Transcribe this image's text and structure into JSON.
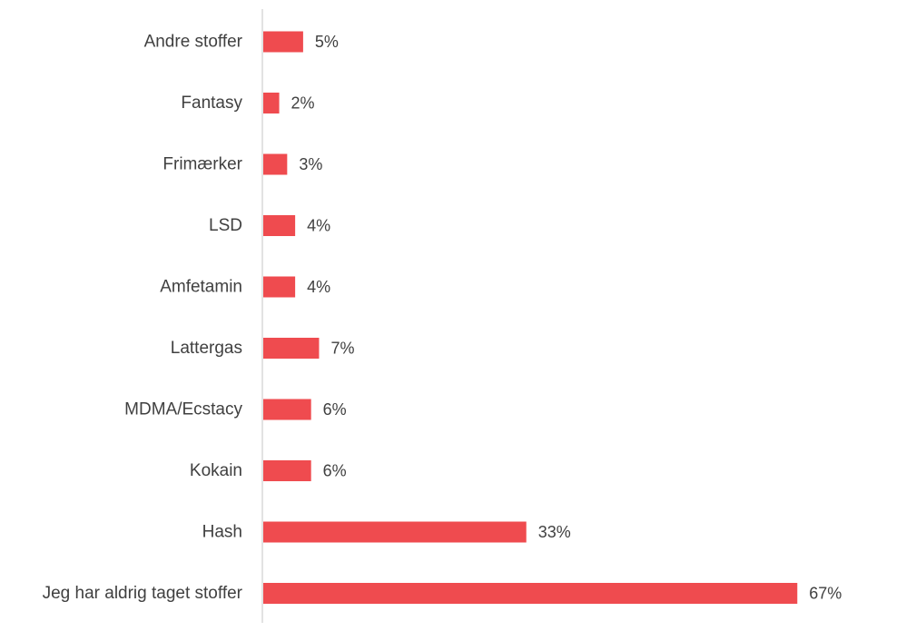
{
  "chart_data": {
    "type": "bar",
    "orientation": "horizontal",
    "categories": [
      "Andre stoffer",
      "Fantasy",
      "Frimærker",
      "LSD",
      "Amfetamin",
      "Lattergas",
      "MDMA/Ecstacy",
      "Kokain",
      "Hash",
      "Jeg har aldrig taget stoffer"
    ],
    "values": [
      5,
      2,
      3,
      4,
      4,
      7,
      6,
      6,
      33,
      67
    ],
    "value_labels": [
      "5%",
      "2%",
      "3%",
      "4%",
      "4%",
      "7%",
      "6%",
      "6%",
      "33%",
      "67%"
    ],
    "unit": "%",
    "bar_color": "#ef4b4f",
    "xlim": [
      0,
      100
    ],
    "grid": false,
    "legend": "none"
  }
}
